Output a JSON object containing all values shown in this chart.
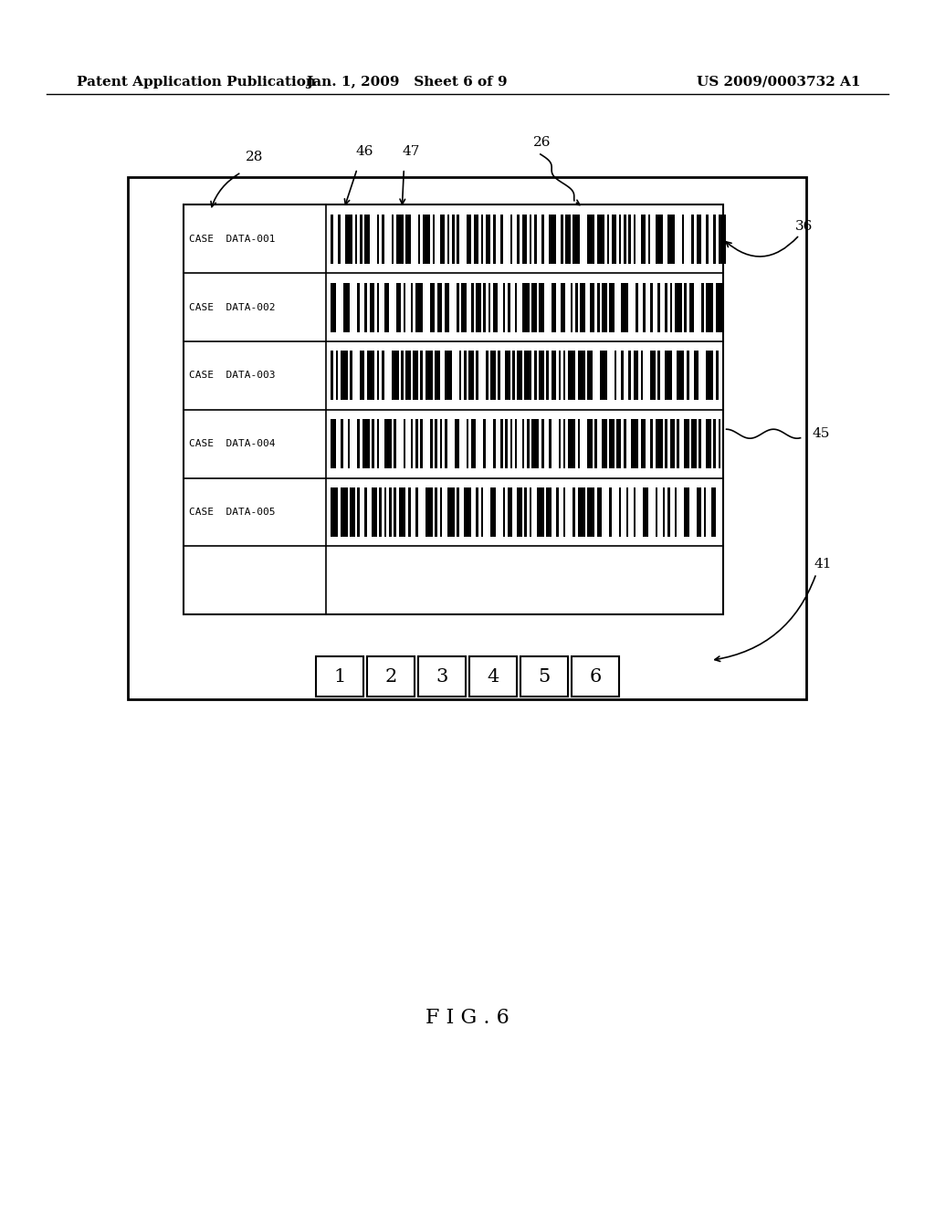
{
  "title_left": "Patent Application Publication",
  "title_center": "Jan. 1, 2009   Sheet 6 of 9",
  "title_right": "US 2009/0003732 A1",
  "fig_label": "F I G . 6",
  "bg_color": "#ffffff",
  "case_labels": [
    "CASE  DATA-001",
    "CASE  DATA-002",
    "CASE  DATA-003",
    "CASE  DATA-004",
    "CASE  DATA-005"
  ],
  "button_labels": [
    "1",
    "2",
    "3",
    "4",
    "5",
    "6"
  ]
}
